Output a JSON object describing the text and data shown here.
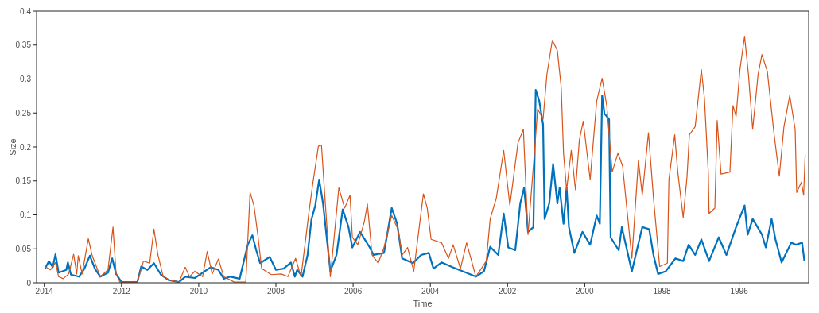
{
  "chart_data": {
    "type": "line",
    "xlabel": "Time",
    "ylabel": "Size",
    "xlim": [
      2014.2,
      1994.2
    ],
    "xticks": [
      2014,
      2012,
      2010,
      2008,
      2006,
      2004,
      2002,
      2000,
      1998,
      1996
    ],
    "ylim": [
      0,
      0.4
    ],
    "yticks": [
      0,
      0.05,
      0.1,
      0.15,
      0.2,
      0.25,
      0.3,
      0.35,
      0.4
    ],
    "series": [
      {
        "color": "#0072bd",
        "x": [
          2013.98,
          2013.88,
          2013.78,
          2013.71,
          2013.63,
          2013.43,
          2013.39,
          2013.31,
          2013.1,
          2012.96,
          2012.82,
          2012.69,
          2012.55,
          2012.35,
          2012.24,
          2012.14,
          2012.0,
          2011.59,
          2011.49,
          2011.33,
          2011.16,
          2010.98,
          2010.78,
          2010.51,
          2010.35,
          2010.1,
          2009.69,
          2009.49,
          2009.35,
          2009.18,
          2008.94,
          2008.73,
          2008.61,
          2008.51,
          2008.41,
          2008.16,
          2008.0,
          2007.8,
          2007.61,
          2007.51,
          2007.45,
          2007.31,
          2007.18,
          2007.08,
          2006.98,
          2006.88,
          2006.78,
          2006.59,
          2006.43,
          2006.27,
          2006.12,
          2006.02,
          2005.82,
          2005.57,
          2005.47,
          2005.2,
          2005.0,
          2004.86,
          2004.73,
          2004.45,
          2004.24,
          2004.04,
          2003.92,
          2003.71,
          2003.43,
          2003.16,
          2002.82,
          2002.61,
          2002.45,
          2002.24,
          2002.1,
          2001.98,
          2001.8,
          2001.67,
          2001.57,
          2001.47,
          2001.33,
          2001.27,
          2001.18,
          2001.08,
          2001.04,
          2000.92,
          2000.82,
          2000.71,
          2000.65,
          2000.55,
          2000.47,
          2000.41,
          2000.27,
          2000.06,
          1999.86,
          1999.69,
          1999.61,
          1999.55,
          1999.49,
          1999.37,
          1999.33,
          1999.12,
          1999.04,
          1998.84,
          1998.78,
          1998.51,
          1998.33,
          1998.22,
          1998.1,
          1997.9,
          1997.65,
          1997.45,
          1997.31,
          1997.14,
          1996.98,
          1996.78,
          1996.53,
          1996.33,
          1996.08,
          1995.86,
          1995.78,
          1995.65,
          1995.41,
          1995.31,
          1995.16,
          1995.06,
          1994.9,
          1994.65,
          1994.53,
          1994.37,
          1994.31
        ],
        "values": [
          0.021,
          0.032,
          0.023,
          0.042,
          0.015,
          0.019,
          0.03,
          0.012,
          0.009,
          0.021,
          0.04,
          0.021,
          0.009,
          0.015,
          0.036,
          0.013,
          0.001,
          0.001,
          0.024,
          0.019,
          0.029,
          0.012,
          0.004,
          0.001,
          0.009,
          0.007,
          0.023,
          0.019,
          0.006,
          0.009,
          0.006,
          0.056,
          0.07,
          0.048,
          0.029,
          0.038,
          0.019,
          0.021,
          0.03,
          0.009,
          0.019,
          0.009,
          0.041,
          0.093,
          0.114,
          0.152,
          0.117,
          0.017,
          0.041,
          0.108,
          0.082,
          0.052,
          0.075,
          0.052,
          0.041,
          0.044,
          0.11,
          0.087,
          0.036,
          0.029,
          0.041,
          0.044,
          0.021,
          0.03,
          0.023,
          0.017,
          0.009,
          0.017,
          0.053,
          0.041,
          0.102,
          0.052,
          0.048,
          0.117,
          0.14,
          0.075,
          0.082,
          0.284,
          0.268,
          0.233,
          0.094,
          0.117,
          0.175,
          0.117,
          0.14,
          0.087,
          0.14,
          0.082,
          0.044,
          0.075,
          0.056,
          0.099,
          0.087,
          0.276,
          0.249,
          0.241,
          0.067,
          0.048,
          0.082,
          0.032,
          0.017,
          0.082,
          0.079,
          0.041,
          0.013,
          0.017,
          0.036,
          0.032,
          0.056,
          0.041,
          0.064,
          0.032,
          0.067,
          0.041,
          0.082,
          0.114,
          0.071,
          0.094,
          0.071,
          0.052,
          0.094,
          0.064,
          0.03,
          0.059,
          0.056,
          0.059,
          0.032
        ]
      },
      {
        "color": "#d95319",
        "x": [
          2013.98,
          2013.84,
          2013.71,
          2013.63,
          2013.51,
          2013.37,
          2013.24,
          2013.16,
          2013.12,
          2013.02,
          2012.86,
          2012.76,
          2012.55,
          2012.35,
          2012.22,
          2012.14,
          2012.04,
          2011.59,
          2011.43,
          2011.27,
          2011.16,
          2011.06,
          2010.92,
          2010.76,
          2010.51,
          2010.35,
          2010.24,
          2010.1,
          2009.9,
          2009.78,
          2009.65,
          2009.49,
          2009.35,
          2009.08,
          2008.78,
          2008.67,
          2008.57,
          2008.47,
          2008.37,
          2008.12,
          2007.86,
          2007.69,
          2007.49,
          2007.35,
          2007.14,
          2007.04,
          2006.9,
          2006.82,
          2006.73,
          2006.59,
          2006.37,
          2006.22,
          2006.08,
          2006.02,
          2005.88,
          2005.71,
          2005.63,
          2005.51,
          2005.35,
          2005.2,
          2005.0,
          2004.84,
          2004.73,
          2004.59,
          2004.43,
          2004.18,
          2004.08,
          2003.98,
          2003.71,
          2003.53,
          2003.41,
          2003.22,
          2003.06,
          2002.82,
          2002.55,
          2002.45,
          2002.29,
          2002.1,
          2001.94,
          2001.73,
          2001.59,
          2001.47,
          2001.31,
          2001.22,
          2001.08,
          2000.98,
          2000.84,
          2000.71,
          2000.61,
          2000.55,
          2000.47,
          2000.35,
          2000.24,
          2000.14,
          2000.04,
          1999.86,
          1999.69,
          1999.55,
          1999.43,
          1999.29,
          1999.14,
          1999.02,
          1998.78,
          1998.61,
          1998.51,
          1998.35,
          1998.22,
          1998.06,
          1997.86,
          1997.82,
          1997.67,
          1997.59,
          1997.45,
          1997.35,
          1997.29,
          1997.14,
          1996.98,
          1996.9,
          1996.8,
          1996.78,
          1996.63,
          1996.57,
          1996.47,
          1996.24,
          1996.16,
          1996.08,
          1995.98,
          1995.86,
          1995.76,
          1995.65,
          1995.51,
          1995.41,
          1995.27,
          1995.1,
          1994.96,
          1994.84,
          1994.69,
          1994.55,
          1994.51,
          1994.39,
          1994.33,
          1994.29
        ],
        "values": [
          0.024,
          0.019,
          0.03,
          0.009,
          0.006,
          0.013,
          0.042,
          0.013,
          0.04,
          0.013,
          0.065,
          0.04,
          0.009,
          0.019,
          0.082,
          0.013,
          0.001,
          0.001,
          0.032,
          0.029,
          0.079,
          0.042,
          0.009,
          0.004,
          0.001,
          0.023,
          0.009,
          0.017,
          0.009,
          0.046,
          0.013,
          0.035,
          0.009,
          0.001,
          0.001,
          0.133,
          0.114,
          0.071,
          0.021,
          0.012,
          0.013,
          0.009,
          0.036,
          0.009,
          0.106,
          0.148,
          0.201,
          0.203,
          0.125,
          0.009,
          0.14,
          0.11,
          0.129,
          0.067,
          0.056,
          0.09,
          0.116,
          0.041,
          0.029,
          0.052,
          0.099,
          0.079,
          0.041,
          0.052,
          0.017,
          0.131,
          0.11,
          0.064,
          0.059,
          0.036,
          0.056,
          0.021,
          0.059,
          0.009,
          0.032,
          0.094,
          0.125,
          0.195,
          0.114,
          0.206,
          0.226,
          0.071,
          0.187,
          0.256,
          0.241,
          0.307,
          0.357,
          0.342,
          0.288,
          0.191,
          0.137,
          0.195,
          0.137,
          0.21,
          0.238,
          0.152,
          0.268,
          0.301,
          0.261,
          0.163,
          0.191,
          0.172,
          0.036,
          0.18,
          0.129,
          0.221,
          0.125,
          0.024,
          0.029,
          0.152,
          0.218,
          0.163,
          0.096,
          0.157,
          0.218,
          0.23,
          0.314,
          0.272,
          0.163,
          0.102,
          0.11,
          0.239,
          0.16,
          0.163,
          0.261,
          0.245,
          0.314,
          0.363,
          0.307,
          0.226,
          0.307,
          0.336,
          0.311,
          0.221,
          0.157,
          0.23,
          0.276,
          0.226,
          0.133,
          0.148,
          0.129,
          0.189
        ]
      }
    ]
  }
}
